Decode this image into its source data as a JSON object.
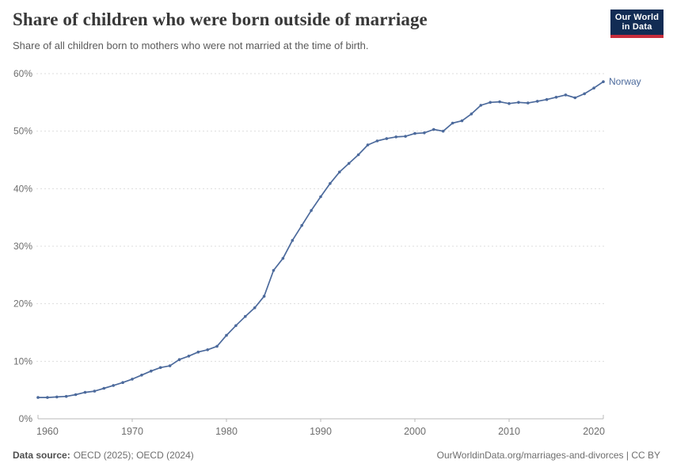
{
  "header": {
    "title": "Share of children who were born outside of marriage",
    "subtitle": "Share of all children born to mothers who were not married at the time of birth.",
    "logo": {
      "line1": "Our World",
      "line2": "in Data"
    }
  },
  "chart_data": {
    "type": "line",
    "title": "Share of children who were born outside of marriage",
    "xlabel": "",
    "ylabel": "",
    "xlim": [
      1960,
      2020
    ],
    "ylim": [
      0,
      60
    ],
    "xticks": [
      1960,
      1970,
      1980,
      1990,
      2000,
      2010,
      2020
    ],
    "yticks": [
      0,
      10,
      20,
      30,
      40,
      50,
      60
    ],
    "ytick_suffix": "%",
    "grid": "horizontal-dashed",
    "legend_position": "end-of-line-label",
    "series": [
      {
        "name": "Norway",
        "color": "#4c6a9c",
        "x": [
          1960,
          1961,
          1962,
          1963,
          1964,
          1965,
          1966,
          1967,
          1968,
          1969,
          1970,
          1971,
          1972,
          1973,
          1974,
          1975,
          1976,
          1977,
          1978,
          1979,
          1980,
          1981,
          1982,
          1983,
          1984,
          1985,
          1986,
          1987,
          1988,
          1989,
          1990,
          1991,
          1992,
          1993,
          1994,
          1995,
          1996,
          1997,
          1998,
          1999,
          2000,
          2001,
          2002,
          2003,
          2004,
          2005,
          2006,
          2007,
          2008,
          2009,
          2010,
          2011,
          2012,
          2013,
          2014,
          2015,
          2016,
          2017,
          2018,
          2019,
          2020
        ],
        "values": [
          3.7,
          3.7,
          3.8,
          3.9,
          4.2,
          4.6,
          4.8,
          5.3,
          5.8,
          6.3,
          6.9,
          7.6,
          8.3,
          8.9,
          9.2,
          10.3,
          10.9,
          11.6,
          12.0,
          12.6,
          14.5,
          16.2,
          17.8,
          19.3,
          21.3,
          25.8,
          27.9,
          31.0,
          33.6,
          36.2,
          38.6,
          40.9,
          42.9,
          44.4,
          45.9,
          47.6,
          48.3,
          48.7,
          49.0,
          49.1,
          49.6,
          49.7,
          50.3,
          50.0,
          51.4,
          51.8,
          53.0,
          54.5,
          55.0,
          55.1,
          54.8,
          55.0,
          54.9,
          55.2,
          55.5,
          55.9,
          56.3,
          55.8,
          56.5,
          57.5,
          58.6
        ]
      }
    ]
  },
  "footer": {
    "source_label": "Data source:",
    "source_value": "OECD (2025); OECD (2024)",
    "credit": "OurWorldinData.org/marriages-and-divorces | CC BY"
  },
  "colors": {
    "title": "#383838",
    "subtitle": "#5b5b5b",
    "tick_label": "#6e6e6e",
    "gridline": "#dddddd",
    "axis": "#b9b9b9",
    "series_line": "#4c6a9c",
    "logo_bg": "#122c54",
    "logo_bar": "#c82d3c"
  }
}
